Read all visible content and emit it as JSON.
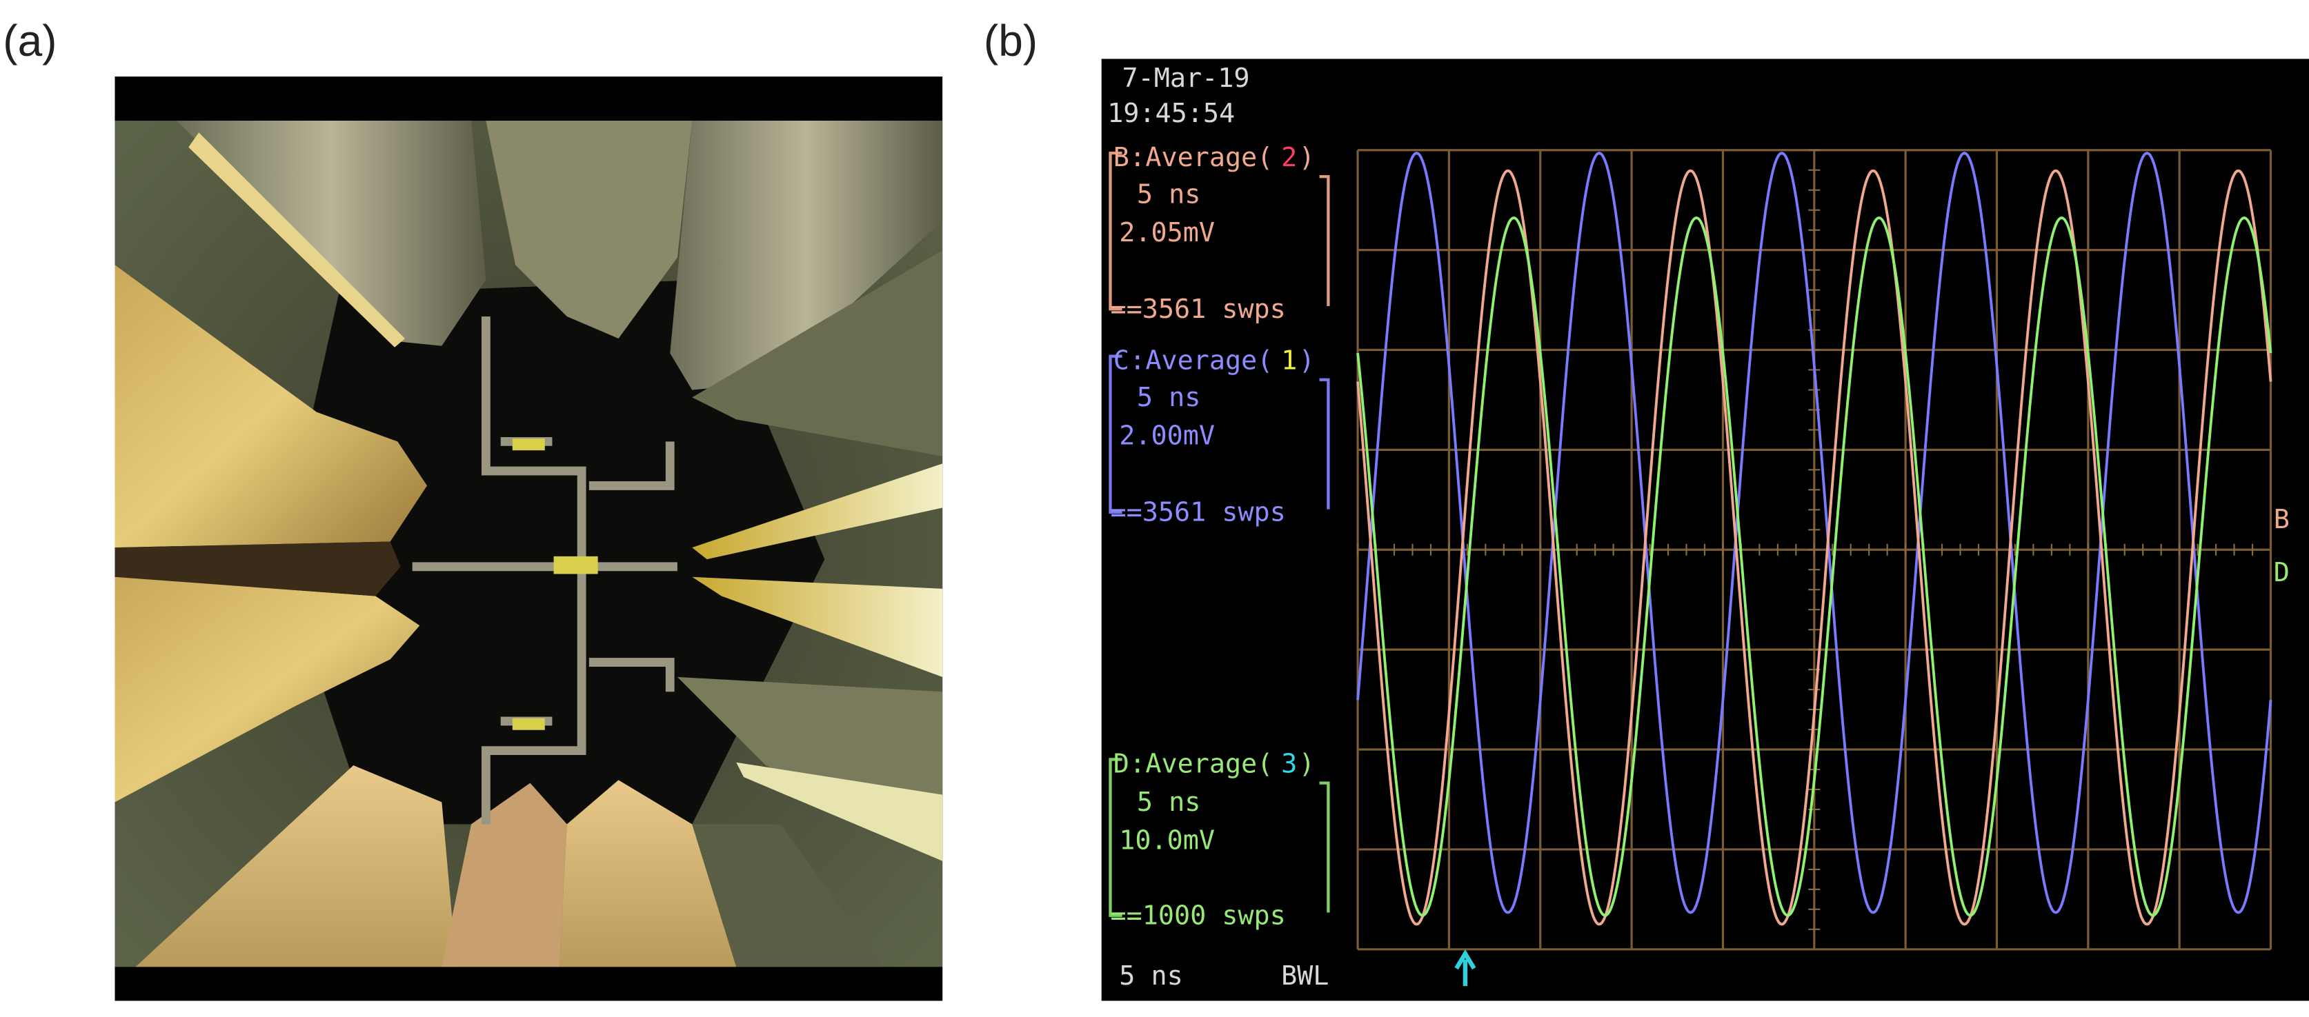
{
  "panels": [
    {
      "label": "(a)"
    },
    {
      "label": "(b)",
      "date": "7-Mar-19",
      "time": "19:45:54",
      "channels": [
        {
          "letter": "B",
          "mode": ":Average(",
          "source": "2",
          "close": ")",
          "timebase": "5 ns",
          "scale": "2.05mV",
          "sweeps": "==3561 swps"
        },
        {
          "letter": "C",
          "mode": ":Average(",
          "source": "1",
          "close": ")",
          "timebase": "5 ns",
          "scale": "2.00mV",
          "sweeps": "==3561 swps"
        },
        {
          "letter": "D",
          "mode": ":Average(",
          "source": "3",
          "close": ")",
          "timebase": "5 ns",
          "scale": "10.0mV",
          "sweeps": "==1000 swps"
        }
      ],
      "footer": {
        "timebase": "5 ns",
        "bandwidth": "BWL"
      },
      "markers": [
        "B",
        "D"
      ]
    }
  ]
}
